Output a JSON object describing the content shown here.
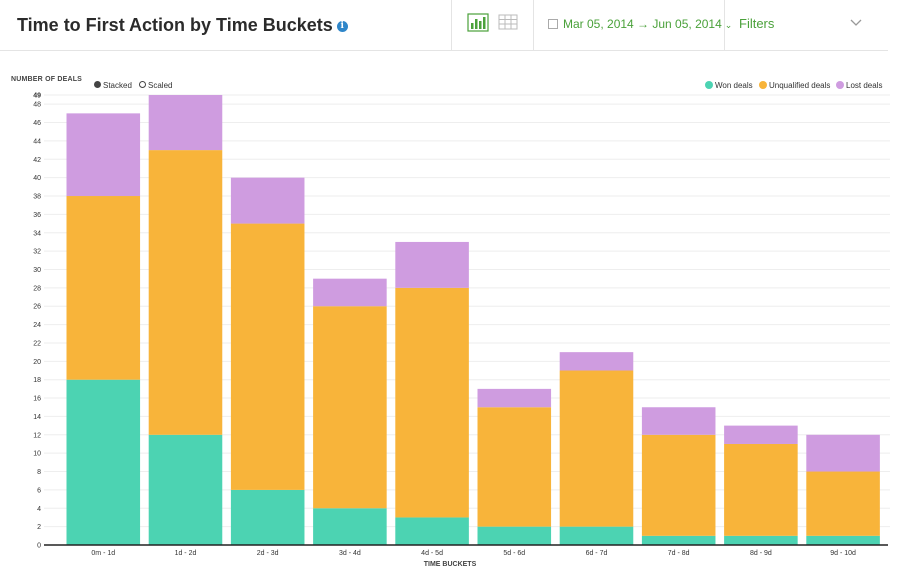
{
  "header": {
    "title": "Time to First Action by Time Buckets",
    "info_icon": "info-icon",
    "chart_view_icon": "bar-chart-icon",
    "table_view_icon": "table-grid-icon",
    "date_range": "Mar 05, 2014 → Jun 05, 2014",
    "filters_label": "Filters"
  },
  "controls": {
    "stacked_label": "Stacked",
    "scaled_label": "Scaled",
    "selected": "Stacked"
  },
  "colors": {
    "won": "#4cd3b2",
    "unqualified": "#f8b43a",
    "lost": "#cf9ce0",
    "accent": "#4aa13a",
    "grid": "#eeeeee"
  },
  "chart_data": {
    "type": "bar",
    "stacked": true,
    "categories": [
      "0m - 1d",
      "1d - 2d",
      "2d - 3d",
      "3d - 4d",
      "4d - 5d",
      "5d - 6d",
      "6d - 7d",
      "7d - 8d",
      "8d - 9d",
      "9d - 10d"
    ],
    "series": [
      {
        "name": "Won deals",
        "values": [
          18,
          12,
          6,
          4,
          3,
          2,
          2,
          1,
          1,
          1
        ]
      },
      {
        "name": "Unqualified deals",
        "values": [
          20,
          31,
          29,
          22,
          25,
          13,
          17,
          11,
          10,
          7
        ]
      },
      {
        "name": "Lost deals",
        "values": [
          9,
          6,
          5,
          3,
          5,
          2,
          2,
          3,
          2,
          4
        ]
      }
    ],
    "xlabel": "TIME BUCKETS",
    "ylabel": "NUMBER OF DEALS",
    "ylim": [
      0,
      49
    ],
    "yticks": [
      0,
      2,
      4,
      6,
      8,
      10,
      12,
      14,
      16,
      18,
      20,
      22,
      24,
      26,
      28,
      30,
      32,
      34,
      36,
      38,
      40,
      42,
      44,
      46,
      48,
      49
    ],
    "grid": true,
    "legend_position": "top-right"
  }
}
